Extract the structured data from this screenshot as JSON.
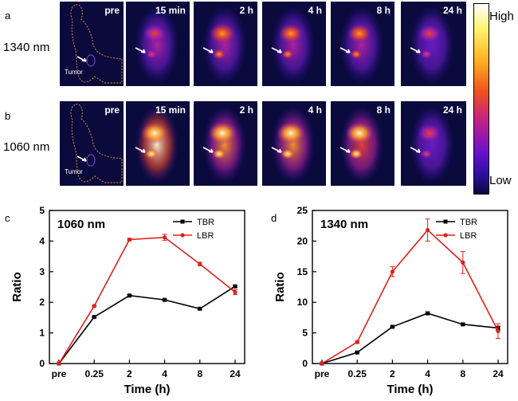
{
  "panels": {
    "a": "a",
    "b": "b",
    "c": "c",
    "d": "d"
  },
  "rows": [
    {
      "label": "1340 nm",
      "times": [
        "pre",
        "15 min",
        "2 h",
        "4 h",
        "8 h",
        "24 h"
      ],
      "tumor_label": "Tumor"
    },
    {
      "label": "1060 nm",
      "times": [
        "pre",
        "15 min",
        "2 h",
        "4 h",
        "8 h",
        "24 h"
      ],
      "tumor_label": "Tumor"
    }
  ],
  "colorbar": {
    "high": "High",
    "low": "Low"
  },
  "chart_data": [
    {
      "type": "line",
      "inset_label": "1060 nm",
      "categories": [
        "pre",
        "0.25",
        "2",
        "4",
        "8",
        "24"
      ],
      "xlabel": "Time (h)",
      "ylabel": "Ratio",
      "ylim": [
        0,
        5
      ],
      "yticks": [
        0,
        1,
        2,
        3,
        4,
        5
      ],
      "legend_position": "top-right",
      "series": [
        {
          "name": "TBR",
          "color": "#000000",
          "values": [
            0,
            1.52,
            2.22,
            2.08,
            1.79,
            2.52
          ],
          "errors": [
            0,
            0.03,
            0.03,
            0.03,
            0.03,
            0.03
          ]
        },
        {
          "name": "LBR",
          "color": "#e0201b",
          "values": [
            0,
            1.88,
            4.05,
            4.12,
            3.25,
            2.33
          ],
          "errors": [
            0,
            0.03,
            0.04,
            0.1,
            0.06,
            0.08
          ]
        }
      ]
    },
    {
      "type": "line",
      "inset_label": "1340 nm",
      "categories": [
        "pre",
        "0.25",
        "2",
        "4",
        "8",
        "24"
      ],
      "xlabel": "Time (h)",
      "ylabel": "Ratio",
      "ylim": [
        0,
        25
      ],
      "yticks": [
        0,
        5,
        10,
        15,
        20,
        25
      ],
      "legend_position": "top-right",
      "series": [
        {
          "name": "TBR",
          "color": "#000000",
          "values": [
            0,
            1.8,
            6.0,
            8.2,
            6.4,
            5.8
          ],
          "errors": [
            0,
            0.1,
            0.1,
            0.2,
            0.1,
            0.3
          ]
        },
        {
          "name": "LBR",
          "color": "#e0201b",
          "values": [
            0,
            3.5,
            15.0,
            21.8,
            16.5,
            5.3
          ],
          "errors": [
            0,
            0.2,
            0.8,
            1.8,
            1.8,
            1.2
          ]
        }
      ]
    }
  ]
}
